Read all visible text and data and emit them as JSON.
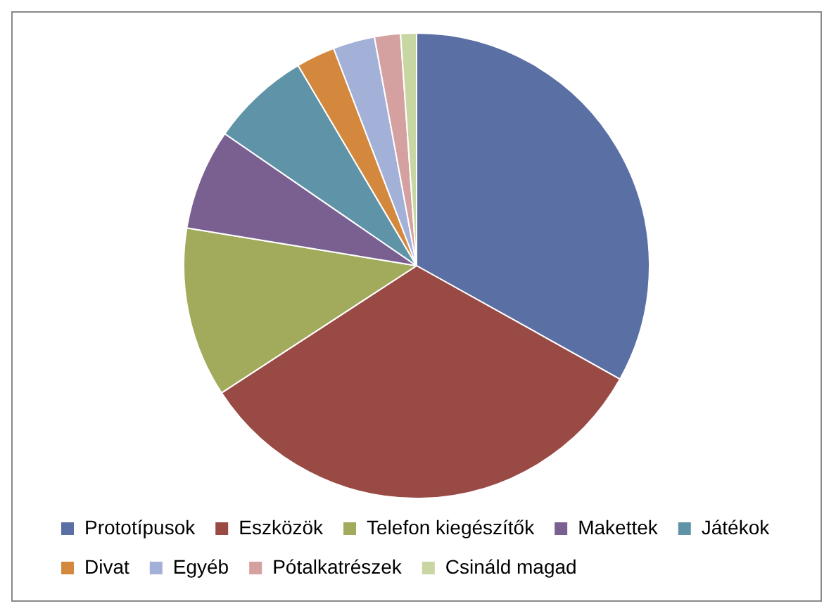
{
  "chart_data": {
    "type": "pie",
    "categories": [
      "Prototípusok",
      "Eszközök",
      "Telefon kiegészítők",
      "Makettek",
      "Játékok",
      "Divat",
      "Egyéb",
      "Pótalkatrészek",
      "Csináld magad"
    ],
    "values": [
      33.1,
      32.7,
      11.8,
      7,
      6.9,
      2.7,
      2.9,
      1.8,
      1.1
    ],
    "colors": [
      "#5a6fa3",
      "#9a4a45",
      "#a2ab5c",
      "#7a6090",
      "#5f93a8",
      "#d4883e",
      "#a3b1d8",
      "#d5a0a0",
      "#c8d6a2"
    ],
    "legend": "bottom"
  }
}
